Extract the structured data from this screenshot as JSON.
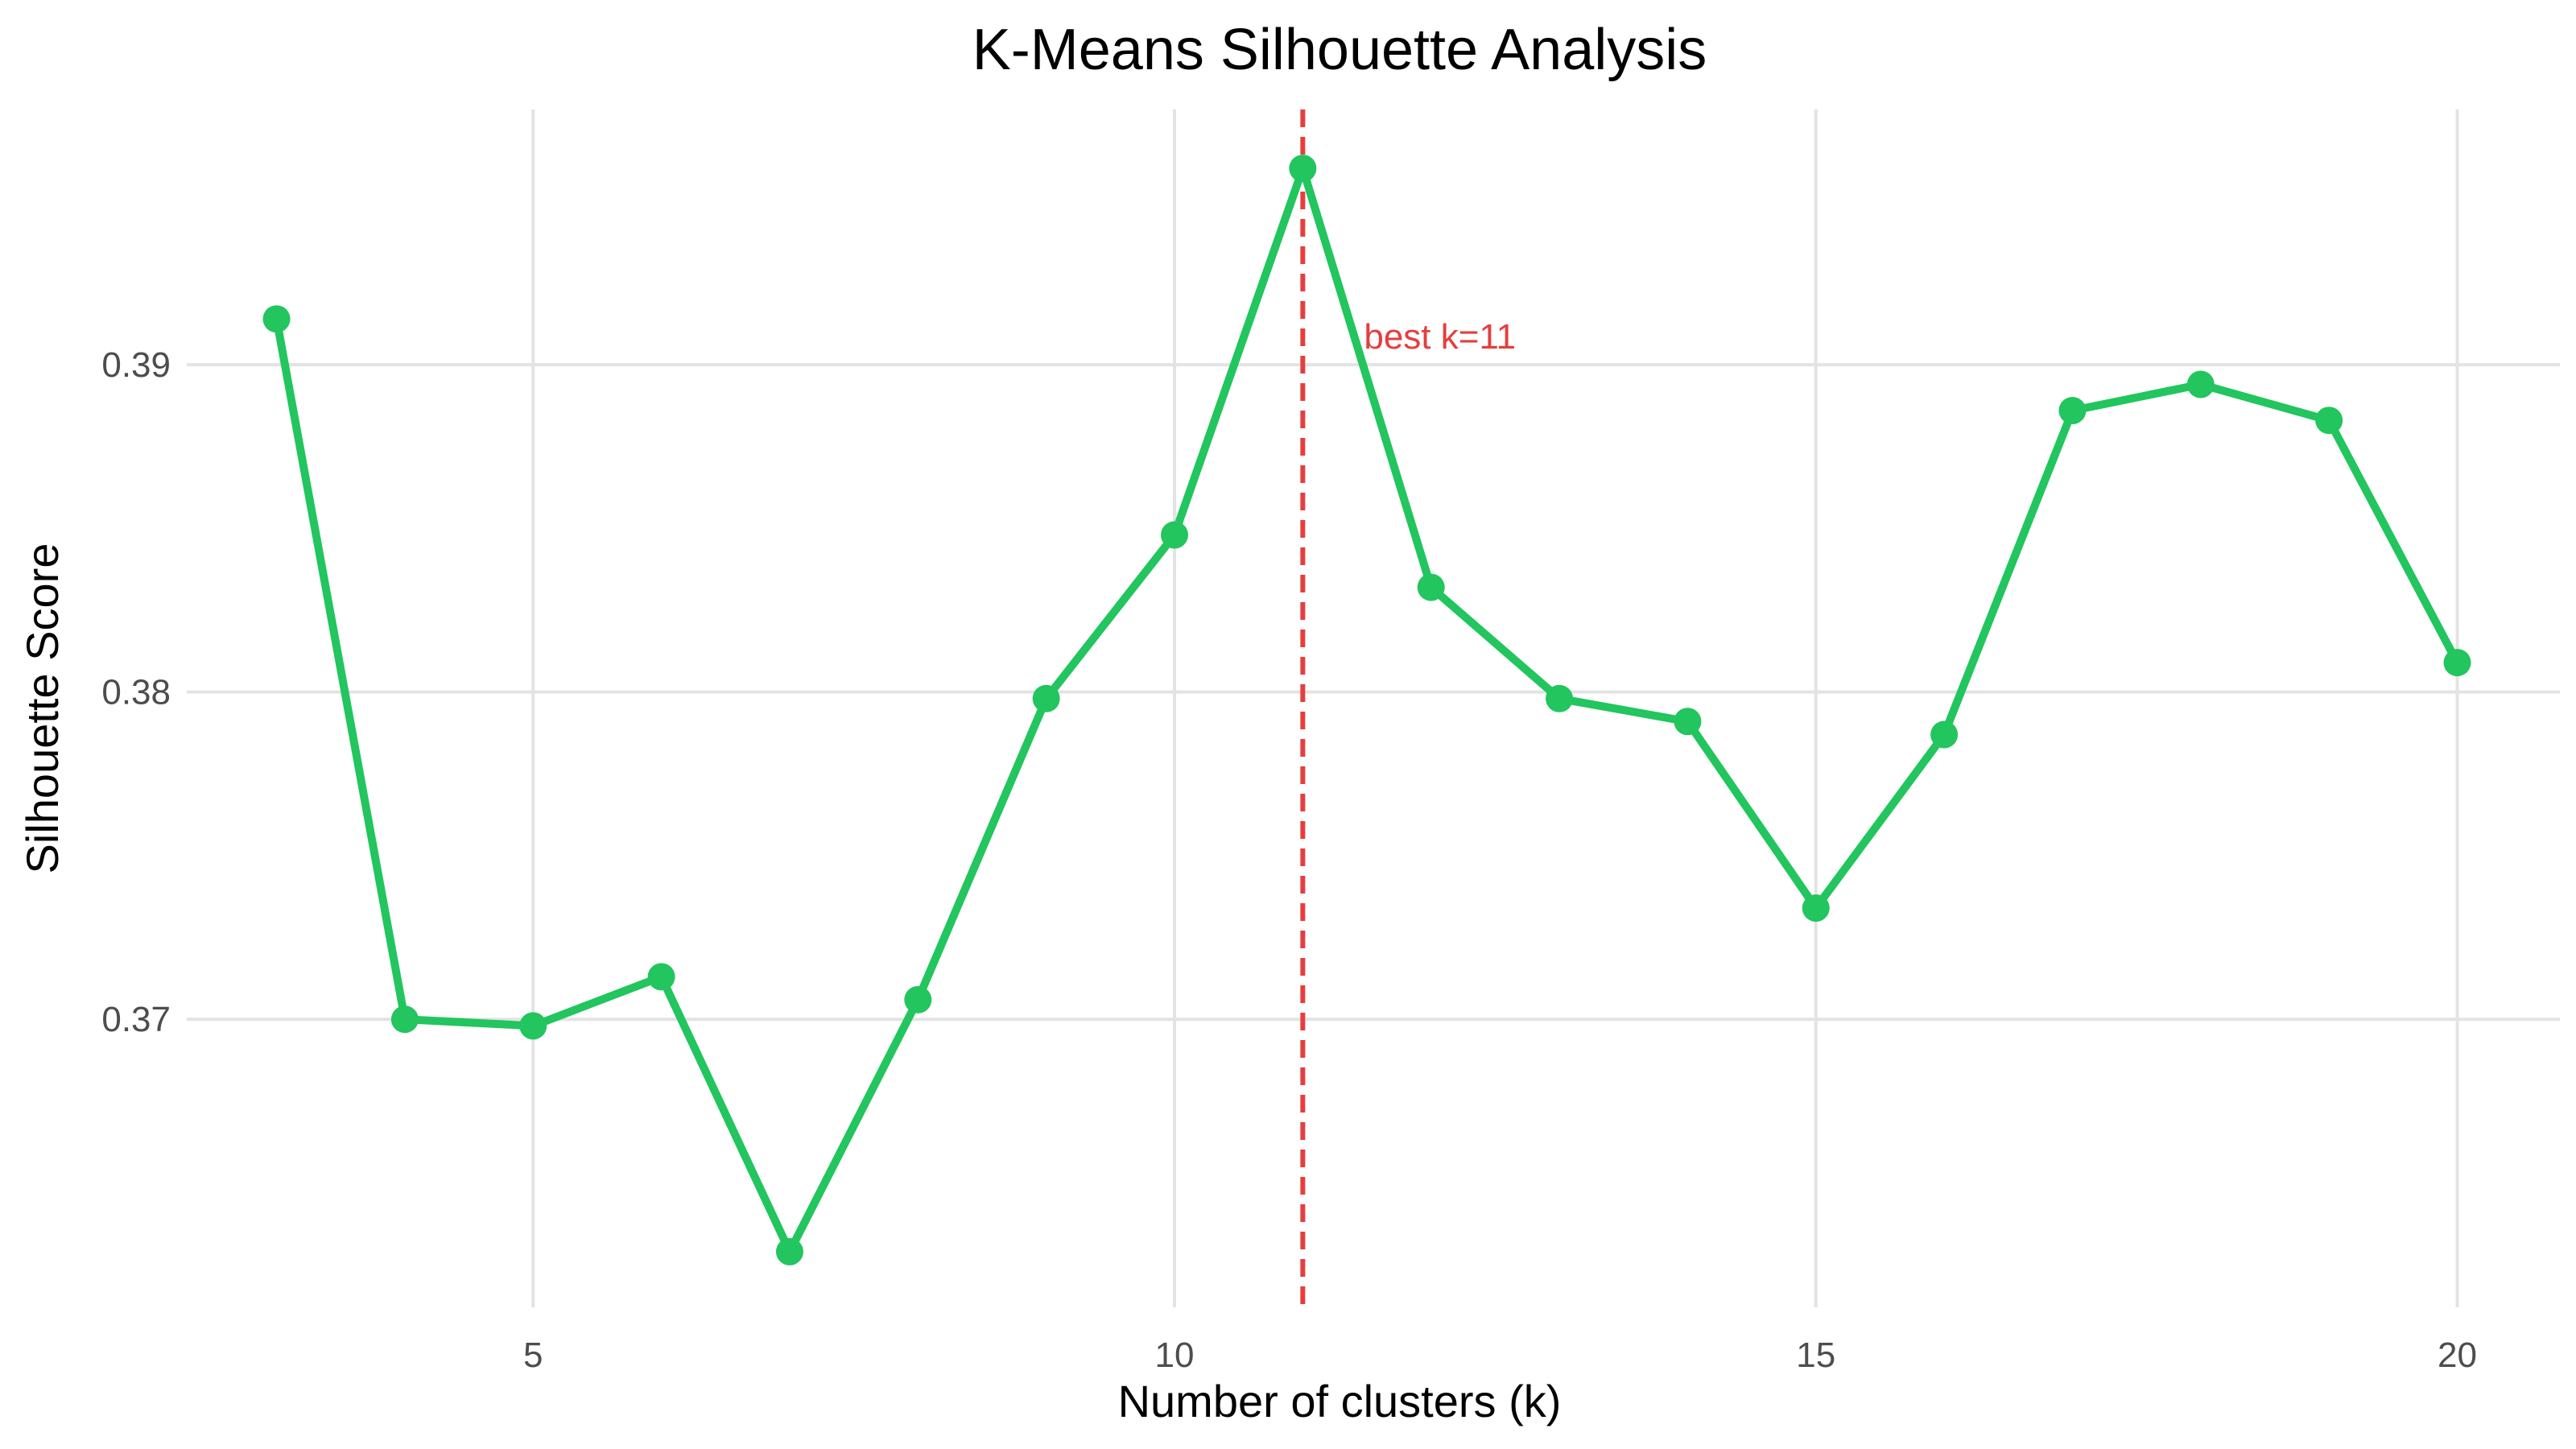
{
  "chart_data": {
    "type": "line",
    "title": "K-Means Silhouette Analysis",
    "xlabel": "Number of clusters (k)",
    "ylabel": "Silhouette Score",
    "x": [
      3,
      4,
      5,
      6,
      7,
      8,
      9,
      10,
      11,
      12,
      13,
      14,
      15,
      16,
      17,
      18,
      19,
      20
    ],
    "series": [
      {
        "values": [
          0.3914,
          0.37,
          0.3698,
          0.3713,
          0.3629,
          0.3706,
          0.3798,
          0.3848,
          0.396,
          0.3832,
          0.3798,
          0.3791,
          0.3734,
          0.3787,
          0.3886,
          0.3894,
          0.3883,
          0.3809
        ],
        "color": "#22c55e"
      }
    ],
    "xticks": [
      5,
      10,
      15,
      20
    ],
    "xtick_labels": [
      "5",
      "10",
      "15",
      "20"
    ],
    "yticks": [
      0.37,
      0.38,
      0.39
    ],
    "ytick_labels": [
      "0.37",
      "0.38",
      "0.39"
    ],
    "xlim": [
      2.3,
      20.8
    ],
    "ylim": [
      0.3612,
      0.3978
    ],
    "grid": true,
    "annotation": {
      "vline_x": 11,
      "text": "best k=11",
      "color": "#e53e3e"
    }
  }
}
